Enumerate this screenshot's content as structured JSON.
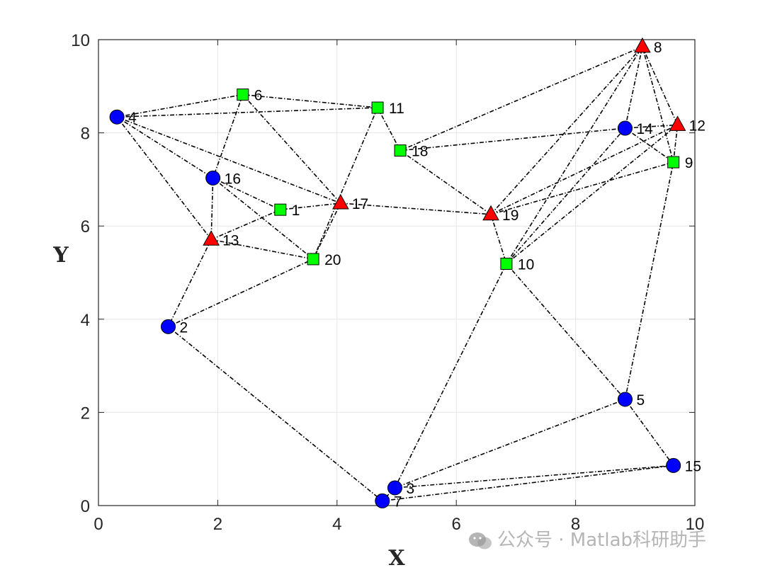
{
  "chart_data": {
    "type": "scatter",
    "xlabel": "X",
    "ylabel": "Y",
    "xlim": [
      0,
      10
    ],
    "ylim": [
      0,
      10
    ],
    "xticks": [
      0,
      2,
      4,
      6,
      8,
      10
    ],
    "yticks": [
      0,
      2,
      4,
      6,
      8,
      10
    ],
    "grid": true,
    "nodes": [
      {
        "id": "1",
        "x": 3.05,
        "y": 6.35,
        "marker": "square",
        "color": "#00ff00"
      },
      {
        "id": "2",
        "x": 1.17,
        "y": 3.84,
        "marker": "circle",
        "color": "#0000ff"
      },
      {
        "id": "3",
        "x": 4.97,
        "y": 0.38,
        "marker": "circle",
        "color": "#0000ff"
      },
      {
        "id": "4",
        "x": 0.31,
        "y": 8.34,
        "marker": "circle",
        "color": "#0000ff"
      },
      {
        "id": "5",
        "x": 8.83,
        "y": 2.28,
        "marker": "circle",
        "color": "#0000ff"
      },
      {
        "id": "6",
        "x": 2.42,
        "y": 8.82,
        "marker": "square",
        "color": "#00ff00"
      },
      {
        "id": "7",
        "x": 4.76,
        "y": 0.1,
        "marker": "circle",
        "color": "#0000ff"
      },
      {
        "id": "8",
        "x": 9.12,
        "y": 9.85,
        "marker": "triangle",
        "color": "#ff0000"
      },
      {
        "id": "9",
        "x": 9.64,
        "y": 7.37,
        "marker": "square",
        "color": "#00ff00"
      },
      {
        "id": "10",
        "x": 6.84,
        "y": 5.19,
        "marker": "square",
        "color": "#00ff00"
      },
      {
        "id": "11",
        "x": 4.68,
        "y": 8.54,
        "marker": "square",
        "color": "#00ff00"
      },
      {
        "id": "12",
        "x": 9.71,
        "y": 8.17,
        "marker": "triangle",
        "color": "#ff0000"
      },
      {
        "id": "13",
        "x": 1.89,
        "y": 5.71,
        "marker": "triangle",
        "color": "#ff0000"
      },
      {
        "id": "14",
        "x": 8.83,
        "y": 8.1,
        "marker": "circle",
        "color": "#0000ff"
      },
      {
        "id": "15",
        "x": 9.64,
        "y": 0.86,
        "marker": "circle",
        "color": "#0000ff"
      },
      {
        "id": "16",
        "x": 1.92,
        "y": 7.03,
        "marker": "circle",
        "color": "#0000ff"
      },
      {
        "id": "17",
        "x": 4.06,
        "y": 6.49,
        "marker": "triangle",
        "color": "#ff0000"
      },
      {
        "id": "18",
        "x": 5.06,
        "y": 7.62,
        "marker": "square",
        "color": "#00ff00"
      },
      {
        "id": "19",
        "x": 6.58,
        "y": 6.25,
        "marker": "triangle",
        "color": "#ff0000"
      },
      {
        "id": "20",
        "x": 3.6,
        "y": 5.29,
        "marker": "square",
        "color": "#00ff00"
      }
    ],
    "edges": [
      [
        "4",
        "6"
      ],
      [
        "4",
        "11"
      ],
      [
        "4",
        "16"
      ],
      [
        "4",
        "13"
      ],
      [
        "4",
        "17"
      ],
      [
        "6",
        "11"
      ],
      [
        "6",
        "16"
      ],
      [
        "6",
        "17"
      ],
      [
        "11",
        "18"
      ],
      [
        "11",
        "20"
      ],
      [
        "16",
        "13"
      ],
      [
        "16",
        "1"
      ],
      [
        "16",
        "20"
      ],
      [
        "13",
        "1"
      ],
      [
        "13",
        "20"
      ],
      [
        "13",
        "2"
      ],
      [
        "2",
        "20"
      ],
      [
        "2",
        "7"
      ],
      [
        "1",
        "17"
      ],
      [
        "17",
        "20"
      ],
      [
        "17",
        "19"
      ],
      [
        "18",
        "19"
      ],
      [
        "18",
        "8"
      ],
      [
        "18",
        "14"
      ],
      [
        "19",
        "10"
      ],
      [
        "19",
        "8"
      ],
      [
        "19",
        "12"
      ],
      [
        "19",
        "9"
      ],
      [
        "10",
        "8"
      ],
      [
        "10",
        "12"
      ],
      [
        "10",
        "14"
      ],
      [
        "10",
        "3"
      ],
      [
        "10",
        "5"
      ],
      [
        "8",
        "14"
      ],
      [
        "8",
        "12"
      ],
      [
        "8",
        "9"
      ],
      [
        "14",
        "12"
      ],
      [
        "14",
        "9"
      ],
      [
        "12",
        "9"
      ],
      [
        "9",
        "5"
      ],
      [
        "5",
        "15"
      ],
      [
        "5",
        "3"
      ],
      [
        "3",
        "15"
      ],
      [
        "7",
        "15"
      ],
      [
        "3",
        "7"
      ]
    ]
  },
  "watermark": {
    "text": "公众号 · Matlab科研助手",
    "icon": "wechat-icon"
  }
}
